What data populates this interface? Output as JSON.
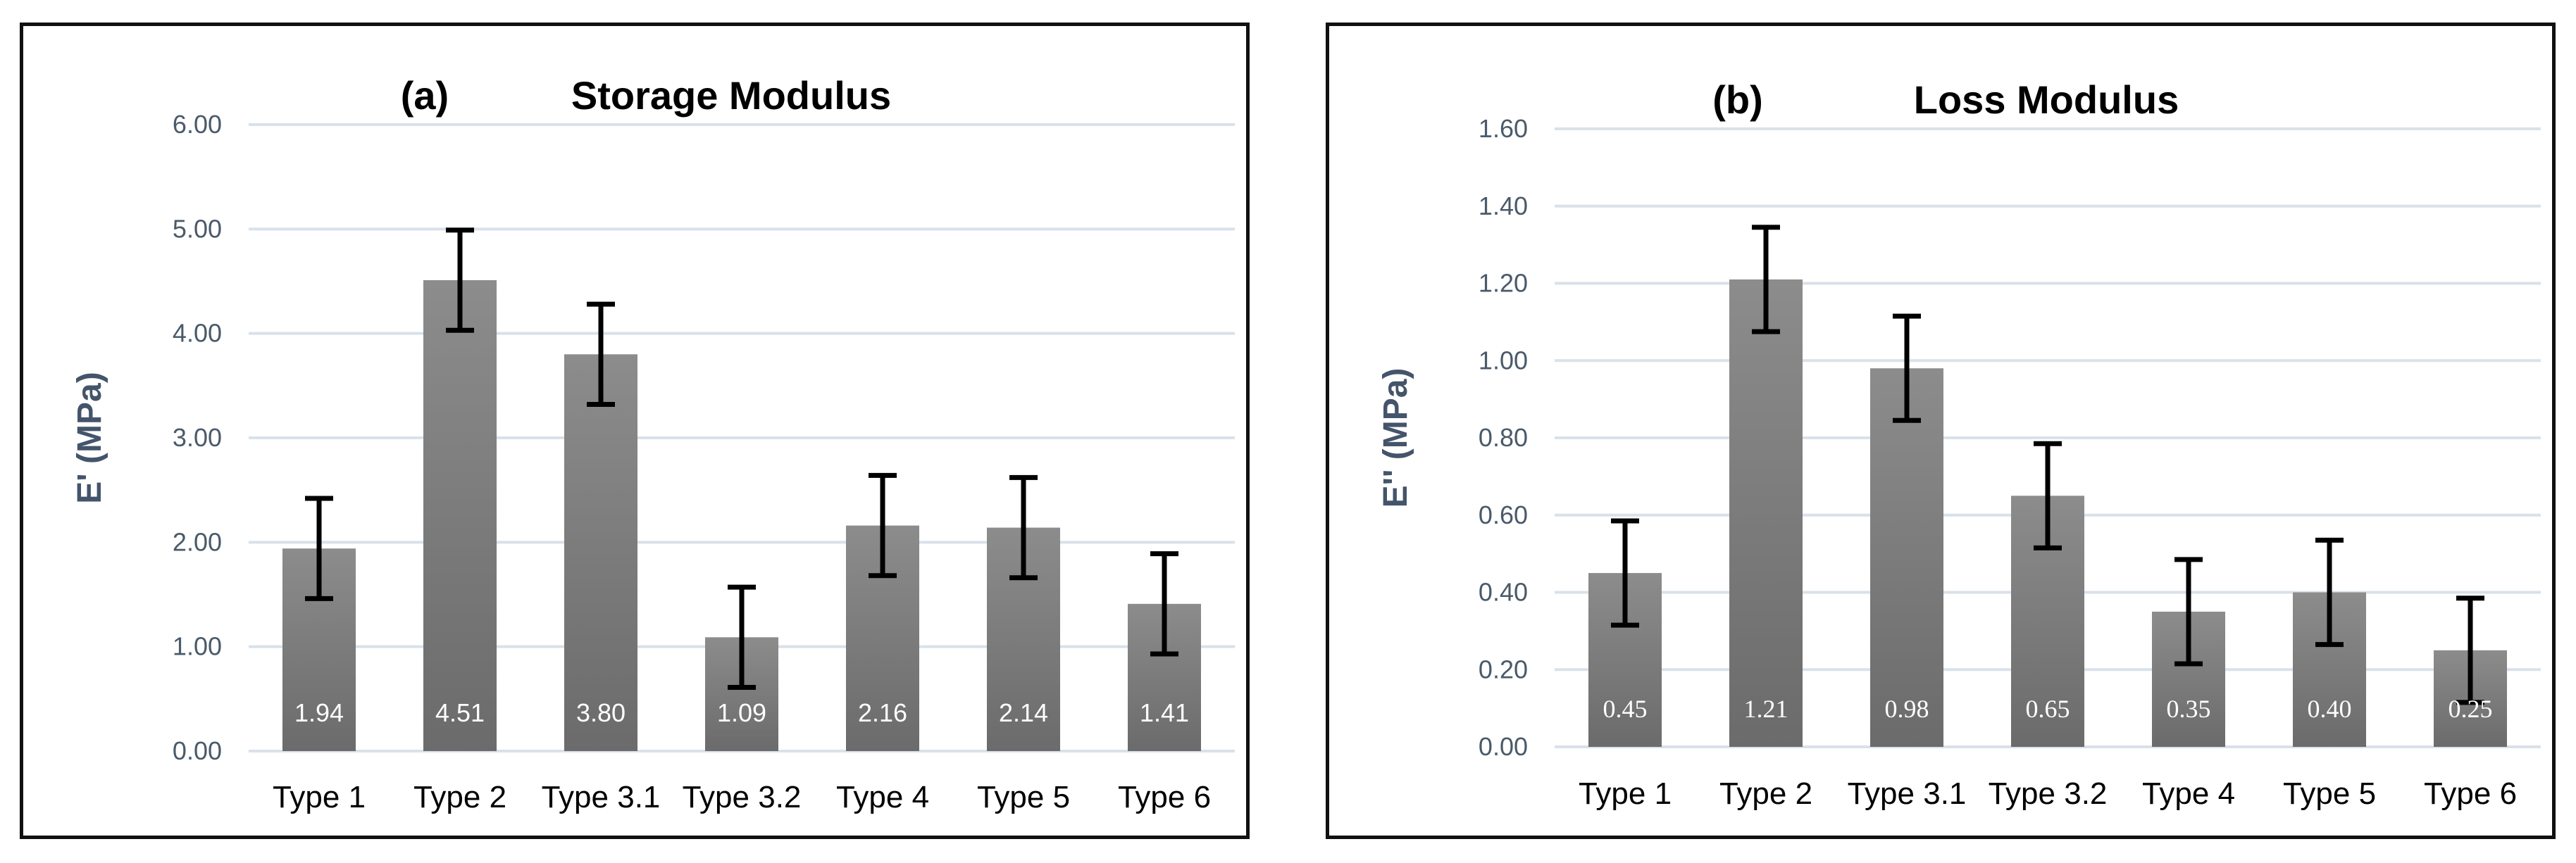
{
  "chart_data": [
    {
      "type": "bar",
      "panel_label": "(a)",
      "title": "Storage Modulus",
      "xlabel": "",
      "ylabel": "E' (MPa)",
      "ylim": [
        0,
        6
      ],
      "yticks": [
        "0.00",
        "1.00",
        "2.00",
        "3.00",
        "4.00",
        "5.00",
        "6.00"
      ],
      "grid": true,
      "categories": [
        "Type 1",
        "Type 2",
        "Type 3.1",
        "Type 3.2",
        "Type 4",
        "Type 5",
        "Type 6"
      ],
      "values": [
        1.94,
        4.51,
        3.8,
        1.09,
        2.16,
        2.14,
        1.41
      ],
      "data_labels": [
        "1.94",
        "4.51",
        "3.80",
        "1.09",
        "2.16",
        "2.14",
        "1.41"
      ],
      "error": [
        0.48,
        0.48,
        0.48,
        0.48,
        0.48,
        0.48,
        0.48
      ],
      "bar_color": "#808080"
    },
    {
      "type": "bar",
      "panel_label": "(b)",
      "title": "Loss Modulus",
      "xlabel": "",
      "ylabel": "E'' (MPa)",
      "ylim": [
        0,
        1.6
      ],
      "yticks": [
        "0.00",
        "0.20",
        "0.40",
        "0.60",
        "0.80",
        "1.00",
        "1.20",
        "1.40",
        "1.60"
      ],
      "grid": true,
      "categories": [
        "Type 1",
        "Type 2",
        "Type 3.1",
        "Type 3.2",
        "Type 4",
        "Type 5",
        "Type 6"
      ],
      "values": [
        0.45,
        1.21,
        0.98,
        0.65,
        0.35,
        0.4,
        0.25
      ],
      "data_labels": [
        "0.45",
        "1.21",
        "0.98",
        "0.65",
        "0.35",
        "0.40",
        "0.25"
      ],
      "error": [
        0.135,
        0.135,
        0.135,
        0.135,
        0.135,
        0.135,
        0.135
      ],
      "bar_color": "#808080"
    }
  ]
}
